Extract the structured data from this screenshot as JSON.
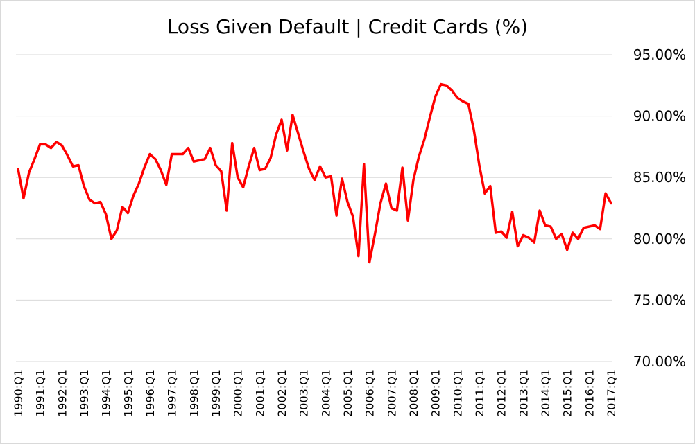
{
  "chart_data": {
    "type": "line",
    "title": "Loss Given Default | Credit Cards (%)",
    "xlabel": "",
    "ylabel": "",
    "ylim": [
      70,
      95
    ],
    "y_ticks": [
      95,
      90,
      85,
      80,
      75,
      70
    ],
    "y_tick_labels": [
      "95.00%",
      "90.00%",
      "85.00%",
      "80.00%",
      "75.00%",
      "70.00%"
    ],
    "x_tick_labels": [
      "1990:Q1",
      "1991:Q1",
      "1992:Q1",
      "1993:Q1",
      "1994:Q1",
      "1995:Q1",
      "1996:Q1",
      "1997:Q1",
      "1998:Q1",
      "1999:Q1",
      "2000:Q1",
      "2001:Q1",
      "2002:Q1",
      "2003:Q1",
      "2004:Q1",
      "2005:Q1",
      "2006:Q1",
      "2007:Q1",
      "2008:Q1",
      "2009:Q1",
      "2010:Q1",
      "2011:Q1",
      "2012:Q1",
      "2013:Q1",
      "2014:Q1",
      "2015:Q1",
      "2016:Q1",
      "2017:Q1"
    ],
    "grid": true,
    "legend": "none",
    "line_color": "#ff0000",
    "series": [
      {
        "values": [
          85.7,
          83.3,
          85.4,
          86.5,
          87.7,
          87.7,
          87.4,
          87.9,
          87.6,
          86.8,
          85.9,
          86.0,
          84.3,
          83.2,
          82.9,
          83.0,
          82.0,
          80.0,
          80.7,
          82.6,
          82.1,
          83.5,
          84.5,
          85.8,
          86.9,
          86.5,
          85.6,
          84.4,
          86.9,
          86.9,
          86.9,
          87.4,
          86.3,
          86.4,
          86.5,
          87.4,
          86.0,
          85.5,
          82.3,
          87.8,
          85.0,
          84.2,
          85.9,
          87.4,
          85.6,
          85.7,
          86.6,
          88.5,
          89.7,
          87.2,
          90.1,
          88.6,
          87.1,
          85.7,
          84.8,
          85.9,
          85.0,
          85.1,
          81.9,
          84.9,
          83.0,
          81.8,
          78.6,
          86.1,
          78.1,
          80.4,
          82.9,
          84.5,
          82.5,
          82.3,
          85.8,
          81.5,
          84.8,
          86.7,
          88.1,
          89.9,
          91.6,
          92.6,
          92.5,
          92.1,
          91.5,
          91.2,
          91.0,
          88.9,
          86.0,
          83.7,
          84.3,
          80.5,
          80.6,
          80.1,
          82.2,
          79.4,
          80.3,
          80.1,
          79.7,
          82.3,
          81.1,
          81.0,
          80.0,
          80.4,
          79.1,
          80.5,
          80.0,
          80.9,
          81.0,
          81.1,
          80.8,
          83.7,
          82.9
        ]
      }
    ]
  }
}
